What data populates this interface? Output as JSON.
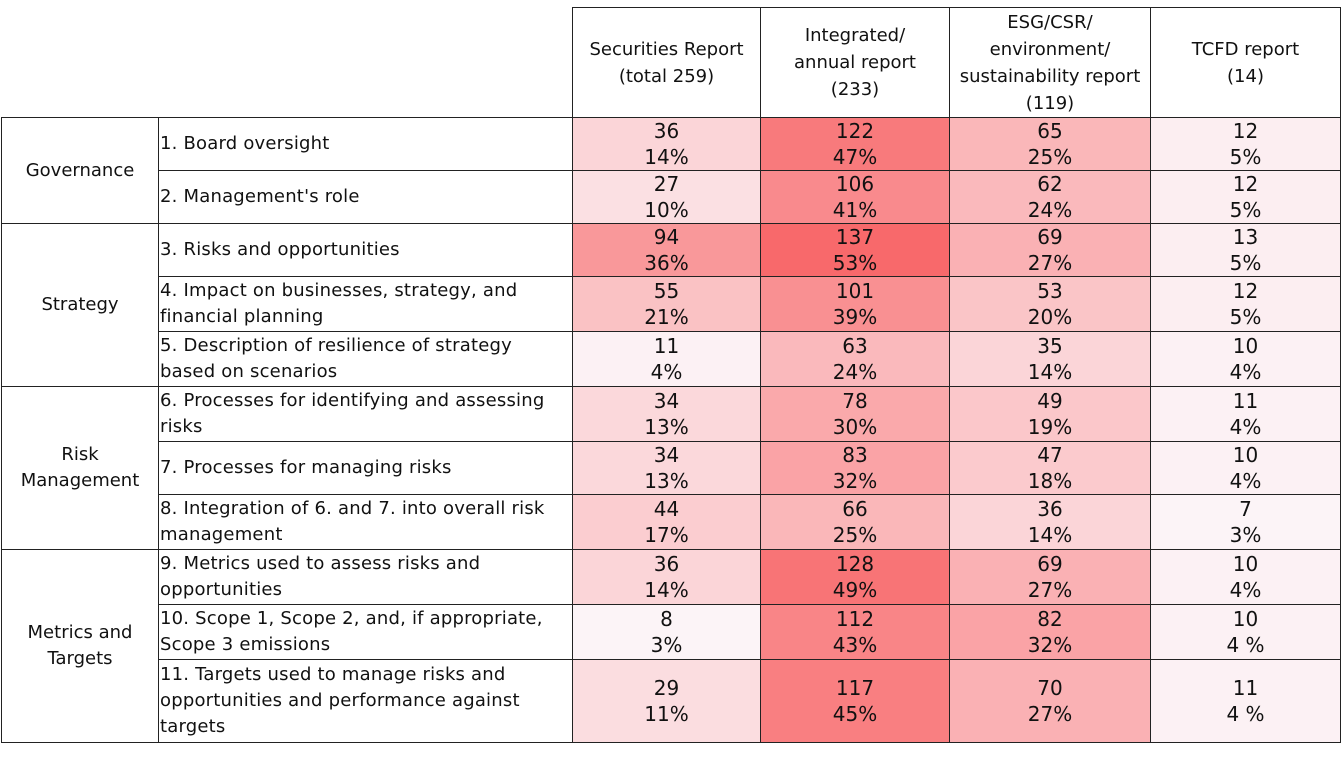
{
  "header": {
    "columns": [
      "Securities Report\n(total 259)",
      "Integrated/\nannual report\n(233)",
      "ESG/CSR/\nenvironment/\nsustainability report\n(119)",
      "TCFD report\n(14)"
    ]
  },
  "groups": [
    {
      "name": "Governance",
      "items": [
        {
          "label": "1. Board oversight",
          "cells": [
            {
              "count": 36,
              "percent": "14%"
            },
            {
              "count": 122,
              "percent": "47%"
            },
            {
              "count": 65,
              "percent": "25%"
            },
            {
              "count": 12,
              "percent": "5%"
            }
          ]
        },
        {
          "label": "2. Management's role",
          "cells": [
            {
              "count": 27,
              "percent": "10%"
            },
            {
              "count": 106,
              "percent": "41%"
            },
            {
              "count": 62,
              "percent": "24%"
            },
            {
              "count": 12,
              "percent": "5%"
            }
          ]
        }
      ]
    },
    {
      "name": "Strategy",
      "items": [
        {
          "label": "3. Risks and opportunities",
          "cells": [
            {
              "count": 94,
              "percent": "36%"
            },
            {
              "count": 137,
              "percent": "53%"
            },
            {
              "count": 69,
              "percent": "27%"
            },
            {
              "count": 13,
              "percent": "5%"
            }
          ]
        },
        {
          "label": "4. Impact on businesses, strategy, and financial planning",
          "cells": [
            {
              "count": 55,
              "percent": "21%"
            },
            {
              "count": 101,
              "percent": "39%"
            },
            {
              "count": 53,
              "percent": "20%"
            },
            {
              "count": 12,
              "percent": "5%"
            }
          ]
        },
        {
          "label": "5. Description of resilience of strategy based on scenarios",
          "cells": [
            {
              "count": 11,
              "percent": "4%"
            },
            {
              "count": 63,
              "percent": "24%"
            },
            {
              "count": 35,
              "percent": "14%"
            },
            {
              "count": 10,
              "percent": "4%"
            }
          ]
        }
      ]
    },
    {
      "name": "Risk Management",
      "items": [
        {
          "label": "6. Processes for identifying and assessing risks",
          "cells": [
            {
              "count": 34,
              "percent": "13%"
            },
            {
              "count": 78,
              "percent": "30%"
            },
            {
              "count": 49,
              "percent": "19%"
            },
            {
              "count": 11,
              "percent": "4%"
            }
          ]
        },
        {
          "label": "7. Processes for managing risks",
          "cells": [
            {
              "count": 34,
              "percent": "13%"
            },
            {
              "count": 83,
              "percent": "32%"
            },
            {
              "count": 47,
              "percent": "18%"
            },
            {
              "count": 10,
              "percent": "4%"
            }
          ]
        },
        {
          "label": "8. Integration of 6. and 7. into overall risk management",
          "cells": [
            {
              "count": 44,
              "percent": "17%"
            },
            {
              "count": 66,
              "percent": "25%"
            },
            {
              "count": 36,
              "percent": "14%"
            },
            {
              "count": 7,
              "percent": "3%"
            }
          ]
        }
      ]
    },
    {
      "name": "Metrics and Targets",
      "items": [
        {
          "label": "9. Metrics used to assess risks and opportunities",
          "cells": [
            {
              "count": 36,
              "percent": "14%"
            },
            {
              "count": 128,
              "percent": "49%"
            },
            {
              "count": 69,
              "percent": "27%"
            },
            {
              "count": 10,
              "percent": "4%"
            }
          ]
        },
        {
          "label": "10. Scope 1, Scope 2, and, if appropriate, Scope 3 emissions",
          "cells": [
            {
              "count": 8,
              "percent": "3%"
            },
            {
              "count": 112,
              "percent": "43%"
            },
            {
              "count": 82,
              "percent": "32%"
            },
            {
              "count": 10,
              "percent": "4 %"
            }
          ]
        },
        {
          "label": "11. Targets used to manage risks and opportunities and performance against targets",
          "cells": [
            {
              "count": 29,
              "percent": "11%"
            },
            {
              "count": 117,
              "percent": "45%"
            },
            {
              "count": 70,
              "percent": "27%"
            },
            {
              "count": 11,
              "percent": "4 %"
            }
          ]
        }
      ]
    }
  ]
}
